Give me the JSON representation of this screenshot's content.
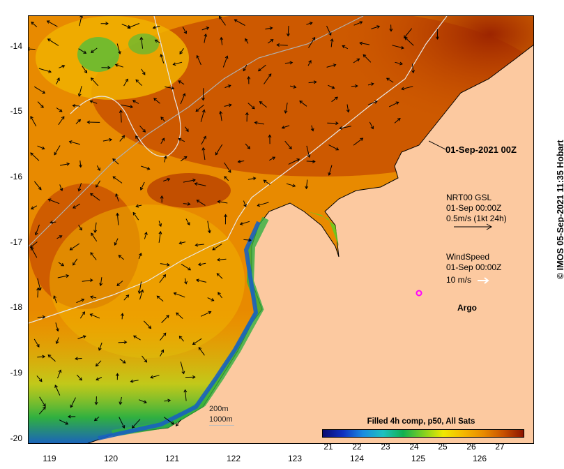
{
  "map": {
    "x_ticks": [
      "119",
      "120",
      "121",
      "122",
      "123",
      "124",
      "125",
      "126"
    ],
    "y_ticks": [
      "-14",
      "-15",
      "-16",
      "-17",
      "-18",
      "-19",
      "-20"
    ],
    "colors": {
      "land": "#fcc9a0",
      "warm": "#c85000",
      "hot": "#a02800",
      "mid": "#e88a00",
      "cool": "#f0b000",
      "green": "#30b040",
      "blue": "#1a60c0",
      "contour": "#bdbdbd"
    }
  },
  "annotations": {
    "date_label": "01-Sep-2021 00Z",
    "gsl_title": "NRT00 GSL",
    "gsl_time": "01-Sep 00:00Z",
    "gsl_scale": "0.5m/s (1kt 24h)",
    "wind_title": "WindSpeed",
    "wind_time": "01-Sep 00:00Z",
    "wind_scale": "10 m/s",
    "argo_label": "Argo",
    "depth_200": "200m",
    "depth_1000": "1000m",
    "stamp": "IMOS 05-Sep-2021 11:35 Hobart"
  },
  "colorbar": {
    "title": "Filled 4h comp, p50, All Sats",
    "ticks": [
      "21",
      "22",
      "23",
      "24",
      "25",
      "26",
      "27"
    ]
  }
}
